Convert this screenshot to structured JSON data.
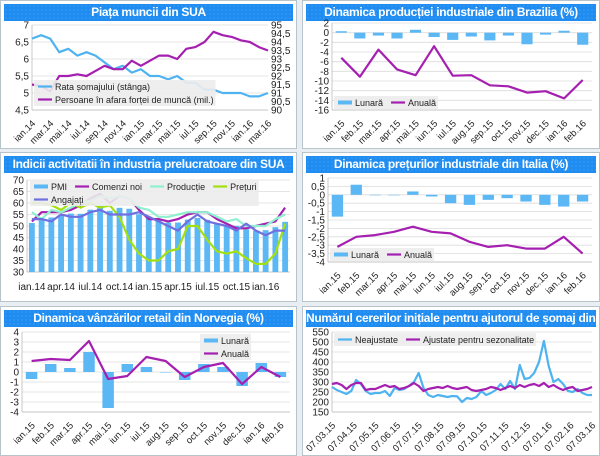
{
  "chart_data": [
    {
      "type": "line",
      "title": "Piața muncii din SUA",
      "x_labels": [
        "ian.14",
        "mar.14",
        "mai.14",
        "iul.14",
        "sep.14",
        "nov.14",
        "ian.15",
        "mar.15",
        "mai.15",
        "iul.15",
        "sep.15",
        "nov.15",
        "ian.16",
        "mar.16"
      ],
      "y_left": {
        "min": 4.5,
        "max": 7,
        "step": 0.5,
        "ticks": [
          "4,5",
          "5",
          "5,5",
          "6",
          "6,5",
          "7"
        ]
      },
      "y_right": {
        "min": 90,
        "max": 95,
        "step": 0.5,
        "ticks": [
          "90",
          "90,5",
          "91",
          "91,5",
          "92",
          "92,5",
          "93",
          "93,5",
          "94",
          "94,5",
          "95"
        ]
      },
      "grid": true,
      "legend": "bottom-inside",
      "series": [
        {
          "name": "Rata șomajului (stânga)",
          "type": "line",
          "axis": "left",
          "color": "#4fb3f0",
          "values": [
            6.6,
            6.7,
            6.6,
            6.2,
            6.3,
            6.1,
            6.2,
            6.1,
            5.9,
            5.7,
            5.8,
            5.6,
            5.7,
            5.5,
            5.5,
            5.4,
            5.5,
            5.3,
            5.3,
            5.1,
            5.1,
            5.0,
            5.0,
            5.0,
            4.9,
            4.9,
            5.0
          ]
        },
        {
          "name": "Persoane în afara forței de muncă (mil.)",
          "type": "line",
          "axis": "right",
          "color": "#a51fb0",
          "values": [
            91.5,
            91.4,
            91.1,
            92.0,
            92.0,
            92.1,
            92.0,
            92.3,
            92.6,
            92.4,
            92.4,
            92.9,
            92.6,
            92.9,
            93.2,
            93.2,
            93.0,
            93.6,
            93.7,
            94.0,
            94.6,
            94.4,
            94.3,
            94.1,
            94.0,
            93.7,
            93.5
          ]
        }
      ]
    },
    {
      "type": "bar",
      "title": "Dinamica producției industriale din Brazilia (%)",
      "x_labels": [
        "ian.15",
        "feb.15",
        "mar.15",
        "apr.15",
        "mai.15",
        "iun.15",
        "iul.15",
        "aug.15",
        "sep.15",
        "oct.15",
        "nov.15",
        "dec.15",
        "ian.16",
        "feb.16"
      ],
      "y_left": {
        "min": -16,
        "max": 2,
        "step": 2,
        "ticks": [
          "-16",
          "-14",
          "-12",
          "-10",
          "-8",
          "-6",
          "-4",
          "-2",
          "0",
          "2"
        ]
      },
      "grid": true,
      "legend": "bottom-left",
      "series": [
        {
          "name": "Lunară",
          "type": "bar",
          "axis": "left",
          "color": "#5bb8f5",
          "values": [
            0.3,
            -1.2,
            -0.6,
            -1.2,
            0.6,
            -0.9,
            -1.5,
            -0.8,
            -1.6,
            -0.6,
            -2.4,
            -0.4,
            0.4,
            -2.5
          ]
        },
        {
          "name": "Anuală",
          "type": "line",
          "axis": "left",
          "color": "#a51fb0",
          "values": [
            -5.2,
            -9.1,
            -3.5,
            -7.6,
            -8.8,
            -2.8,
            -8.9,
            -8.8,
            -10.9,
            -11.1,
            -12.4,
            -12.1,
            -13.6,
            -9.8
          ]
        }
      ]
    },
    {
      "type": "bar",
      "title": "Indicii activitatii în industria prelucratoare din SUA",
      "x_labels": [
        "ian.14",
        "apr.14",
        "iul.14",
        "oct.14",
        "ian.15",
        "apr.15",
        "iul.15",
        "oct.15",
        "ian.16"
      ],
      "y_left": {
        "min": 30,
        "max": 70,
        "step": 5,
        "ticks": [
          "30",
          "35",
          "40",
          "45",
          "50",
          "55",
          "60",
          "65",
          "70"
        ]
      },
      "grid": true,
      "legend": "top",
      "series": [
        {
          "name": "PMI",
          "type": "bar",
          "axis": "left",
          "color": "#5bb8f5",
          "values": [
            51.3,
            53.2,
            53.7,
            54.9,
            55.4,
            55.3,
            57.1,
            59.0,
            56.6,
            57.9,
            57.5,
            55.1,
            53.5,
            52.9,
            51.5,
            51.5,
            52.8,
            53.5,
            52.7,
            51.1,
            50.2,
            50.1,
            48.6,
            48.0,
            48.2,
            49.5,
            51.8
          ]
        },
        {
          "name": "Comenzi noi",
          "type": "line",
          "axis": "left",
          "color": "#a51fb0",
          "values": [
            52,
            56,
            56,
            56,
            57,
            59,
            62,
            64,
            60,
            63,
            62,
            57,
            53,
            53,
            52,
            53,
            55,
            56,
            56,
            53,
            51,
            49,
            49,
            50,
            51,
            52,
            58
          ]
        },
        {
          "name": "Producție",
          "type": "line",
          "axis": "left",
          "color": "#8ff0cf",
          "values": [
            56,
            53,
            57,
            56,
            58,
            60,
            61,
            63,
            62,
            63,
            62,
            58,
            57,
            54,
            54,
            55,
            56,
            56,
            56,
            54,
            52,
            53,
            50,
            50,
            50,
            53,
            55
          ]
        },
        {
          "name": "Prețuri",
          "type": "line",
          "axis": "left",
          "color": "#a4e010",
          "values": [
            60,
            60,
            59,
            57,
            60,
            58,
            60,
            58,
            59,
            54,
            44,
            38,
            35,
            35,
            39,
            40,
            50,
            50,
            44,
            39,
            38,
            39,
            36,
            33.5,
            33.5,
            38,
            51
          ]
        },
        {
          "name": "Angajați",
          "type": "line",
          "axis": "left",
          "color": "#6f6fe0",
          "values": [
            53,
            53,
            52,
            55,
            54,
            54,
            56,
            57,
            55,
            55,
            55,
            56,
            54,
            52,
            50,
            48,
            52,
            55,
            52,
            51,
            50,
            48,
            51,
            48,
            46,
            48,
            48
          ]
        }
      ]
    },
    {
      "type": "bar",
      "title": "Dinamica prețurilor industriale din Italia (%)",
      "x_labels": [
        "ian.15",
        "feb.15",
        "mar.15",
        "apr.15",
        "mai.15",
        "iun.15",
        "iul.15",
        "aug.15",
        "sep.15",
        "oct.15",
        "nov.15",
        "dec.15",
        "ian.16",
        "feb.16"
      ],
      "y_left": {
        "min": -4,
        "max": 1,
        "step": 0.5,
        "ticks": [
          "-4",
          "-3,5",
          "-3",
          "-2,5",
          "-2",
          "-1,5",
          "-1",
          "-0,5",
          "0",
          "0,5",
          "1"
        ]
      },
      "grid": true,
      "legend": "bottom-left",
      "series": [
        {
          "name": "Lunară",
          "type": "bar",
          "axis": "left",
          "color": "#5bb8f5",
          "values": [
            -1.3,
            0.6,
            0,
            0,
            0.2,
            -0.1,
            -0.5,
            -0.6,
            -0.3,
            -0.2,
            -0.4,
            -0.6,
            -0.7,
            -0.4
          ]
        },
        {
          "name": "Anuală",
          "type": "line",
          "axis": "left",
          "color": "#a51fb0",
          "values": [
            -3.1,
            -2.5,
            -2.4,
            -2.2,
            -1.9,
            -2.2,
            -2.3,
            -2.8,
            -3.1,
            -3.0,
            -3.2,
            -3.2,
            -2.5,
            -3.5
          ]
        }
      ]
    },
    {
      "type": "bar",
      "title": "Dinamica vânzărilor retail din Norvegia (%)",
      "x_labels": [
        "ian.15",
        "feb.15",
        "mar.15",
        "apr.15",
        "mai.15",
        "iun.15",
        "iul.15",
        "aug.15",
        "sep.15",
        "oct.15",
        "nov.15",
        "dec.15",
        "ian.16",
        "feb.16"
      ],
      "y_left": {
        "min": -4,
        "max": 4,
        "step": 1,
        "ticks": [
          "-4",
          "-3",
          "-2",
          "-1",
          "0",
          "1",
          "2",
          "3",
          "4"
        ]
      },
      "grid": true,
      "legend": "top-right",
      "series": [
        {
          "name": "Lunară",
          "type": "bar",
          "axis": "left",
          "color": "#5bb8f5",
          "values": [
            -0.7,
            0.8,
            0.4,
            2.0,
            -3.6,
            0.8,
            0.5,
            0,
            -0.8,
            0.8,
            0.5,
            -1.4,
            0.9,
            -0.5
          ]
        },
        {
          "name": "Anuală",
          "type": "line",
          "axis": "left",
          "color": "#a51fb0",
          "values": [
            1.1,
            1.3,
            1.2,
            3.1,
            -0.7,
            -0.4,
            1.5,
            1.1,
            -0.5,
            0.5,
            0.9,
            -1.2,
            0.5,
            -0.5
          ]
        }
      ]
    },
    {
      "type": "line",
      "title": "Numărul cererilor inițiale pentru ajutorul de șomaj din SUA (mii)",
      "x_labels": [
        "07.03.15",
        "07.04.15",
        "07.05.15",
        "07.06.15",
        "07.07.15",
        "07.08.15",
        "07.09.15",
        "07.10.15",
        "07.11.15",
        "07.12.15",
        "07.01.16",
        "07.02.16",
        "07.03.16"
      ],
      "y_left": {
        "min": 150,
        "max": 550,
        "step": 50,
        "ticks": [
          "150",
          "200",
          "250",
          "300",
          "350",
          "400",
          "450",
          "500",
          "550"
        ]
      },
      "grid": true,
      "legend": "top-left",
      "series": [
        {
          "name": "Neajustate",
          "type": "line",
          "axis": "left",
          "color": "#4fb3f0",
          "values": [
            275,
            260,
            250,
            240,
            255,
            310,
            290,
            255,
            240,
            245,
            245,
            255,
            230,
            270,
            260,
            265,
            280,
            300,
            345,
            270,
            235,
            225,
            235,
            230,
            225,
            230,
            228,
            200,
            220,
            215,
            225,
            255,
            235,
            245,
            260,
            290,
            265,
            305,
            265,
            385,
            315,
            320,
            345,
            400,
            505,
            380,
            300,
            315,
            290,
            255,
            250,
            265,
            245,
            235,
            235
          ]
        },
        {
          "name": "Ajustate pentru sezonalitate",
          "type": "line",
          "axis": "left",
          "color": "#a51fb0",
          "values": [
            290,
            295,
            285,
            265,
            285,
            295,
            295,
            260,
            265,
            265,
            275,
            285,
            275,
            280,
            265,
            270,
            280,
            295,
            280,
            255,
            265,
            270,
            275,
            270,
            280,
            270,
            265,
            270,
            275,
            260,
            255,
            260,
            265,
            275,
            270,
            260,
            270,
            280,
            270,
            285,
            275,
            285,
            290,
            280,
            295,
            275,
            285,
            270,
            260,
            270,
            275,
            255,
            260,
            265,
            275
          ]
        }
      ]
    }
  ]
}
